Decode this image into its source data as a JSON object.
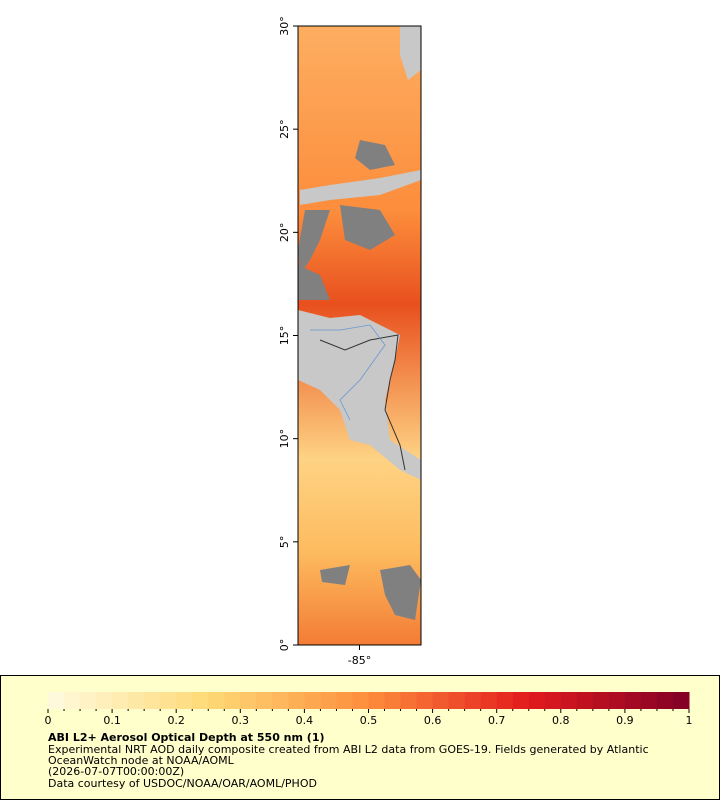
{
  "map": {
    "latlim": [
      0,
      30
    ],
    "lonlim": [
      -88,
      -82
    ],
    "lat_ticks": [
      {
        "value": 0,
        "label": "0°"
      },
      {
        "value": 5,
        "label": "5°"
      },
      {
        "value": 10,
        "label": "10°"
      },
      {
        "value": 15,
        "label": "15°"
      },
      {
        "value": 20,
        "label": "20°"
      },
      {
        "value": 25,
        "label": "25°"
      },
      {
        "value": 30,
        "label": "30°"
      }
    ],
    "lon_ticks": [
      {
        "value": -85,
        "label": "-85°"
      }
    ]
  },
  "colorbar": {
    "lim": [
      0,
      1
    ],
    "ticks": [
      0,
      0.1,
      0.2,
      0.3,
      0.4,
      0.5,
      0.6,
      0.7,
      0.8,
      0.9,
      1
    ],
    "colors": [
      "#fffbe0",
      "#fed976",
      "#fd8d3c",
      "#e31a1c",
      "#800026"
    ]
  },
  "legend": {
    "title": "ABI L2+ Aerosol Optical Depth at 550 nm (1)",
    "lines": [
      "Experimental NRT AOD daily composite created from ABI L2 data from GOES-19. Fields generated by Atlantic",
      "OceanWatch node at NOAA/AOML",
      "(2026-07-07T00:00:00Z)",
      "Data courtesy of USDOC/NOAA/OAR/AOML/PHOD"
    ]
  }
}
